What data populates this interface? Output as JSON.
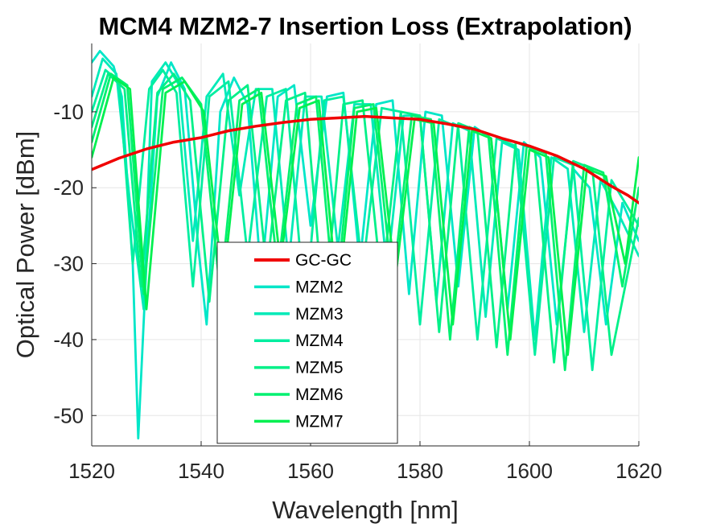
{
  "chart_data": {
    "type": "line",
    "title": "MCM4 MZM2-7 Insertion Loss (Extrapolation)",
    "xlabel": "Wavelength [nm]",
    "ylabel": "Optical Power [dBm]",
    "xlim": [
      1520,
      1620
    ],
    "ylim": [
      -54,
      -1
    ],
    "xticks": [
      1520,
      1540,
      1560,
      1580,
      1600,
      1620
    ],
    "yticks": [
      -50,
      -40,
      -30,
      -20,
      -10
    ],
    "grid": true,
    "legend_position": "center-bottom",
    "series": [
      {
        "name": "GC-GC",
        "color": "#f00000",
        "x": [
          1520,
          1525,
          1530,
          1535,
          1540,
          1545,
          1550,
          1555,
          1560,
          1565,
          1570,
          1575,
          1580,
          1585,
          1590,
          1595,
          1600,
          1605,
          1610,
          1615,
          1618,
          1620
        ],
        "values": [
          -17.6,
          -16.1,
          -14.9,
          -14.0,
          -13.4,
          -12.5,
          -11.9,
          -11.4,
          -11.0,
          -10.8,
          -10.6,
          -10.8,
          -11.0,
          -11.6,
          -12.3,
          -13.5,
          -14.5,
          -15.8,
          -17.5,
          -19.8,
          -21.0,
          -22.0
        ]
      },
      {
        "name": "MZM2",
        "color": "#00e6c8",
        "x": [
          1520,
          1521.5,
          1524,
          1525.5,
          1527.5,
          1528.5,
          1530,
          1532,
          1534.5,
          1537,
          1539.5,
          1541,
          1543.5,
          1546,
          1548.5,
          1551,
          1554,
          1557,
          1560,
          1563,
          1566,
          1569,
          1572,
          1575,
          1578,
          1581,
          1584,
          1587,
          1590,
          1593,
          1596,
          1599,
          1602,
          1605,
          1608,
          1611,
          1614,
          1617,
          1620
        ],
        "values": [
          -3.5,
          -2.0,
          -4.0,
          -8.0,
          -30.0,
          -53.0,
          -30.0,
          -8.0,
          -3.5,
          -7.0,
          -28.0,
          -38.0,
          -10.0,
          -5.5,
          -9.0,
          -32.0,
          -8.0,
          -6.5,
          -25.0,
          -8.0,
          -7.5,
          -30.0,
          -9.0,
          -8.5,
          -34.0,
          -10.0,
          -10.5,
          -33.0,
          -12.0,
          -13.5,
          -36.0,
          -14.0,
          -16.0,
          -38.0,
          -17.5,
          -20.0,
          -38.0,
          -22.0,
          -27.0
        ]
      },
      {
        "name": "MZM3",
        "color": "#00eab8",
        "x": [
          1520,
          1522,
          1524.5,
          1527,
          1529.5,
          1531,
          1533.5,
          1536,
          1538.5,
          1541,
          1544,
          1547,
          1550,
          1553,
          1556,
          1559,
          1562,
          1565,
          1568,
          1571,
          1574,
          1577,
          1580,
          1583,
          1586,
          1589,
          1592,
          1595,
          1598,
          1601,
          1604,
          1607,
          1610,
          1613,
          1616,
          1620
        ],
        "values": [
          -8.0,
          -3.0,
          -5.0,
          -22.0,
          -36.0,
          -6.0,
          -3.5,
          -6.5,
          -27.0,
          -8.0,
          -5.0,
          -21.0,
          -7.0,
          -7.0,
          -30.0,
          -8.0,
          -8.0,
          -28.0,
          -9.0,
          -9.0,
          -31.0,
          -10.5,
          -10.5,
          -35.0,
          -11.5,
          -12.5,
          -37.0,
          -14.0,
          -15.0,
          -40.0,
          -16.0,
          -17.5,
          -39.0,
          -19.0,
          -23.0,
          -29.0
        ]
      },
      {
        "name": "MZM4",
        "color": "#00eea0",
        "x": [
          1520,
          1522.5,
          1525,
          1527.5,
          1530.5,
          1533,
          1535.5,
          1538.5,
          1541.5,
          1545,
          1548.5,
          1552,
          1555.5,
          1559,
          1562.5,
          1566,
          1569.5,
          1573,
          1576.5,
          1580,
          1583.5,
          1587,
          1590.5,
          1594,
          1597.5,
          1601,
          1604.5,
          1608,
          1611.5,
          1615,
          1620
        ],
        "values": [
          -10.0,
          -4.5,
          -6.0,
          -30.0,
          -7.0,
          -4.5,
          -7.5,
          -33.0,
          -8.0,
          -6.0,
          -29.0,
          -8.0,
          -7.0,
          -36.0,
          -8.5,
          -8.0,
          -31.0,
          -9.5,
          -10.0,
          -38.0,
          -11.0,
          -12.0,
          -40.0,
          -13.5,
          -14.5,
          -42.0,
          -16.0,
          -17.0,
          -44.0,
          -19.0,
          -25.0
        ]
      },
      {
        "name": "MZM5",
        "color": "#00f088",
        "x": [
          1520,
          1523,
          1526,
          1529,
          1532,
          1535,
          1538,
          1541.5,
          1545,
          1548.5,
          1552,
          1555.5,
          1559,
          1562.5,
          1566,
          1569.5,
          1573,
          1576.5,
          1580,
          1583.5,
          1587,
          1590.5,
          1594,
          1597.5,
          1601,
          1604.5,
          1608,
          1611.5,
          1615,
          1620
        ],
        "values": [
          -12.0,
          -5.0,
          -7.0,
          -33.0,
          -7.5,
          -5.0,
          -8.5,
          -35.0,
          -8.5,
          -6.5,
          -31.0,
          -8.5,
          -7.5,
          -37.0,
          -9.0,
          -8.5,
          -33.0,
          -10.0,
          -10.5,
          -39.0,
          -11.5,
          -12.5,
          -41.0,
          -14.0,
          -15.0,
          -43.0,
          -16.5,
          -17.5,
          -42.0,
          -24.0
        ]
      },
      {
        "name": "MZM6",
        "color": "#00f070",
        "x": [
          1520,
          1523.5,
          1526.5,
          1529.5,
          1533,
          1536.5,
          1540,
          1543.5,
          1547,
          1550.5,
          1554,
          1557.5,
          1561,
          1564.5,
          1568,
          1571.5,
          1575,
          1578.5,
          1582,
          1585.5,
          1589,
          1592.5,
          1596,
          1599.5,
          1603,
          1606.5,
          1610,
          1613.5,
          1617,
          1620
        ],
        "values": [
          -14.0,
          -5.0,
          -6.5,
          -34.0,
          -7.0,
          -5.5,
          -9.0,
          -34.0,
          -8.5,
          -7.0,
          -31.0,
          -9.0,
          -8.0,
          -36.0,
          -9.5,
          -9.0,
          -33.0,
          -10.5,
          -11.0,
          -40.0,
          -12.0,
          -13.0,
          -42.0,
          -14.5,
          -15.5,
          -44.0,
          -17.0,
          -18.0,
          -33.0,
          -20.0
        ]
      },
      {
        "name": "MZM7",
        "color": "#00f050",
        "x": [
          1520,
          1524,
          1527,
          1530,
          1533.5,
          1537,
          1540.5,
          1544,
          1547.5,
          1551,
          1554.5,
          1558,
          1561.5,
          1565,
          1568.5,
          1572,
          1575.5,
          1579,
          1582.5,
          1586,
          1589.5,
          1593,
          1596.5,
          1600,
          1603.5,
          1607,
          1610.5,
          1614,
          1617.5,
          1620
        ],
        "values": [
          -16.0,
          -5.5,
          -7.0,
          -36.0,
          -7.5,
          -6.0,
          -10.0,
          -33.0,
          -9.0,
          -7.5,
          -30.0,
          -9.5,
          -8.5,
          -35.0,
          -10.0,
          -9.5,
          -32.0,
          -11.0,
          -11.5,
          -38.0,
          -12.5,
          -13.5,
          -40.0,
          -15.0,
          -16.0,
          -42.0,
          -17.5,
          -18.5,
          -30.0,
          -16.0
        ]
      }
    ]
  }
}
